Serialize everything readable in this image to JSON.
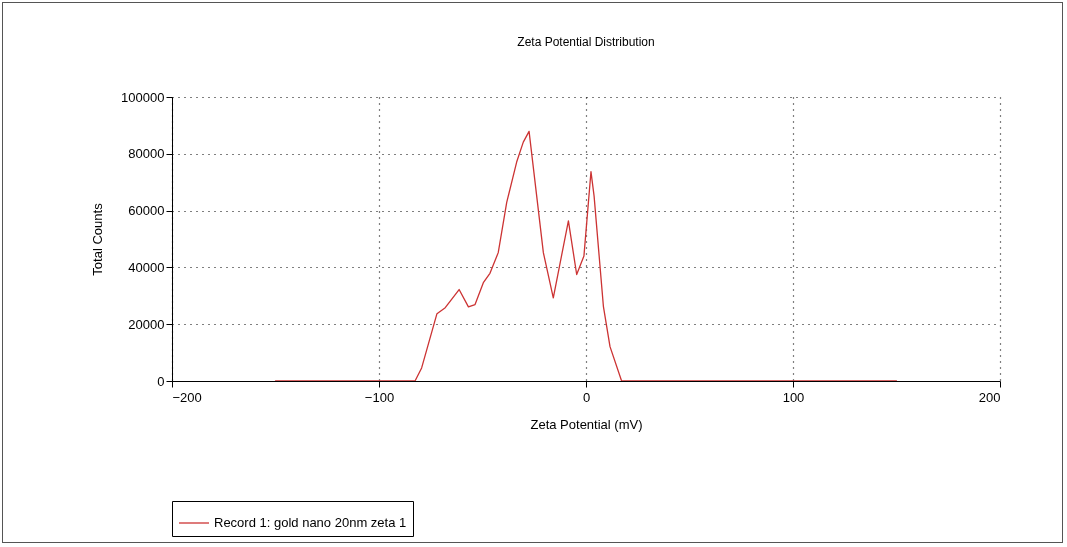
{
  "chart_data": {
    "type": "line",
    "title": "Zeta Potential Distribution",
    "xlabel": "Zeta Potential (mV)",
    "ylabel": "Total Counts",
    "xlim": [
      -200,
      200
    ],
    "xticks": [
      -200,
      -100,
      0,
      100,
      200
    ],
    "ylim": [
      0,
      100000
    ],
    "yticks": [
      0,
      20000,
      40000,
      60000,
      80000,
      100000
    ],
    "grid": true,
    "legend": "bottom",
    "line_style": "solid",
    "marker": "none",
    "series": [
      {
        "name": "Record 1: gold nano 20nm zeta 1",
        "color": "#cc3333",
        "x": [
          -150,
          -82.6,
          -79.4,
          -72,
          -68,
          -61.3,
          -56.8,
          -53.6,
          -49.6,
          -46.4,
          -42.4,
          -38.3,
          -33.5,
          -30.3,
          -27.5,
          -20.6,
          -15.8,
          -8.5,
          -4.5,
          -1,
          2.4,
          3.9,
          8.4,
          11.6,
          17.2,
          150
        ],
        "values": [
          0,
          0,
          4600,
          23700,
          25800,
          32200,
          26100,
          26900,
          34600,
          37900,
          45200,
          62900,
          77100,
          84100,
          87900,
          45200,
          29300,
          56400,
          37500,
          44000,
          73700,
          65200,
          26300,
          12100,
          0,
          0
        ]
      }
    ]
  }
}
